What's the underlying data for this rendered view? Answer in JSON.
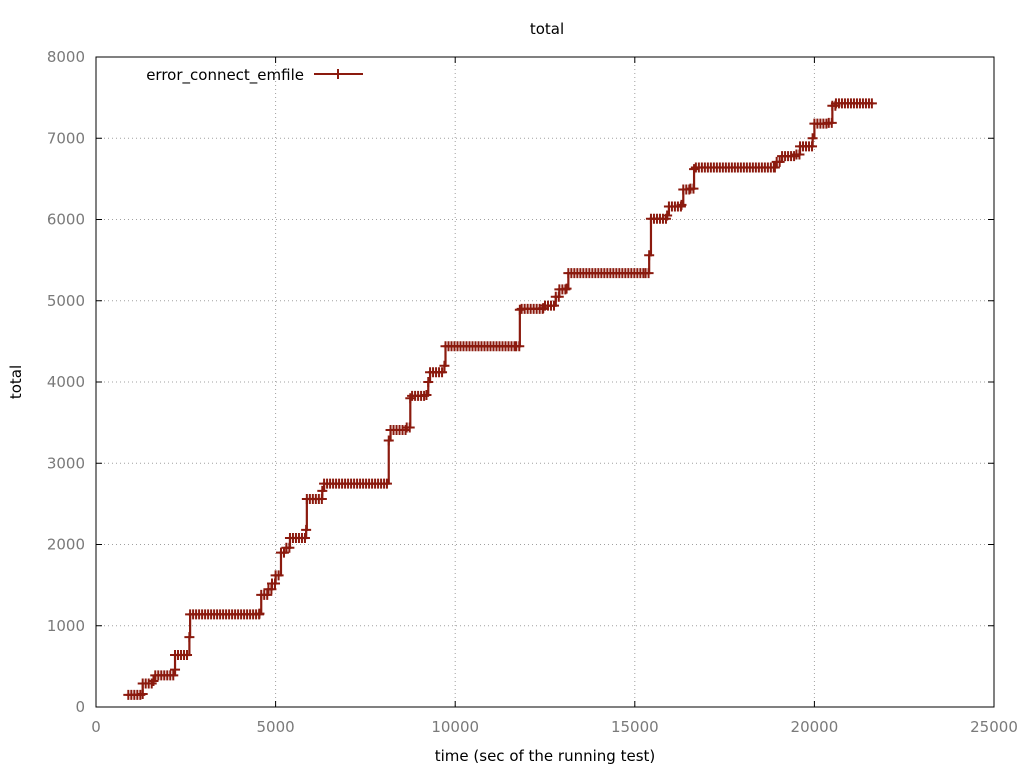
{
  "chart_data": {
    "type": "line",
    "title": "total",
    "xlabel": "time (sec of the running test)",
    "ylabel": "total",
    "xlim": [
      0,
      25000
    ],
    "ylim": [
      0,
      8000
    ],
    "xticks": [
      0,
      5000,
      10000,
      15000,
      20000,
      25000
    ],
    "yticks": [
      0,
      1000,
      2000,
      3000,
      4000,
      5000,
      6000,
      7000,
      8000
    ],
    "grid": true,
    "legend_position": "top-left",
    "series": [
      {
        "name": "error_connect_emfile",
        "color": "#8b1a0e",
        "marker": "plus",
        "x": [
          900,
          1300,
          1300,
          1600,
          1650,
          2200,
          2200,
          2600,
          2620,
          4550,
          4600,
          4800,
          4900,
          5000,
          5150,
          5300,
          5400,
          5850,
          5870,
          6300,
          6350,
          8100,
          8150,
          8200,
          8650,
          8750,
          8800,
          9200,
          9250,
          9300,
          9700,
          9730,
          11700,
          11800,
          11850,
          12450,
          12500,
          12800,
          12900,
          13100,
          13150,
          15300,
          15400,
          15450,
          15900,
          15950,
          16300,
          16350,
          16550,
          16650,
          16700,
          18900,
          18950,
          19100,
          19500,
          19600,
          19950,
          20000,
          20400,
          20500,
          20600,
          21600
        ],
        "y": [
          150,
          160,
          290,
          320,
          390,
          460,
          640,
          860,
          1140,
          1150,
          1380,
          1450,
          1520,
          1620,
          1900,
          1960,
          2080,
          2180,
          2560,
          2660,
          2750,
          2750,
          3280,
          3410,
          3440,
          3800,
          3830,
          3840,
          4000,
          4120,
          4200,
          4440,
          4440,
          4890,
          4900,
          4910,
          4940,
          5050,
          5140,
          5150,
          5340,
          5340,
          5560,
          6010,
          6050,
          6160,
          6180,
          6370,
          6380,
          6620,
          6640,
          6640,
          6710,
          6780,
          6800,
          6900,
          7000,
          7180,
          7190,
          7400,
          7430,
          7430
        ]
      }
    ]
  }
}
